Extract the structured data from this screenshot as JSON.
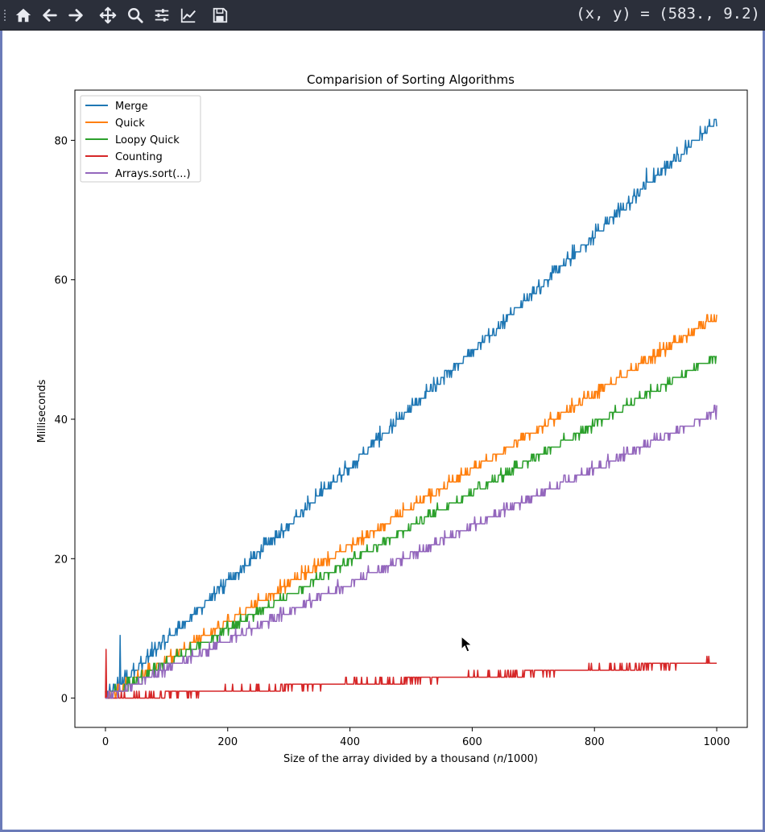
{
  "toolbar": {
    "buttons": [
      {
        "name": "home-button",
        "icon": "home-icon"
      },
      {
        "name": "back-button",
        "icon": "arrow-left-icon"
      },
      {
        "name": "forward-button",
        "icon": "arrow-right-icon"
      },
      {
        "name": "pan-button",
        "icon": "move-icon"
      },
      {
        "name": "zoom-button",
        "icon": "magnifier-icon"
      },
      {
        "name": "configure-subplots-button",
        "icon": "sliders-icon"
      },
      {
        "name": "edit-axis-button",
        "icon": "line-chart-icon"
      },
      {
        "name": "save-button",
        "icon": "floppy-disk-icon"
      }
    ],
    "coords_readout": "(x, y) = (583., 9.2)"
  },
  "colors": {
    "toolbar_bg": "#2b2f3a",
    "Merge": "#1f77b4",
    "Quick": "#ff7f0e",
    "Loopy Quick": "#2ca02c",
    "Counting": "#d62728",
    "Arrays.sort(...)": "#9467bd"
  },
  "chart_data": {
    "type": "line",
    "title": "Comparision of Sorting Algorithms",
    "xlabel_main": "Size of the array divided by a thousand (",
    "xlabel_var": "n",
    "xlabel_end": "/1000)",
    "ylabel": "Milliseconds",
    "xlim": [
      -50,
      1050
    ],
    "ylim": [
      -4.2,
      87.2
    ],
    "xticks": [
      0,
      200,
      400,
      600,
      800,
      1000
    ],
    "yticks": [
      0,
      20,
      40,
      60,
      80
    ],
    "grid": false,
    "legend_position": "upper-left",
    "series": [
      {
        "name": "Merge",
        "slope": 0.0829,
        "noise": 0.55,
        "spikes": [
          [
            24,
            9
          ],
          [
            885,
            76
          ],
          [
            663,
            56
          ]
        ]
      },
      {
        "name": "Quick",
        "slope": 0.0545,
        "noise": 0.45,
        "spikes": []
      },
      {
        "name": "Loopy Quick",
        "slope": 0.049,
        "noise": 0.4,
        "spikes": []
      },
      {
        "name": "Counting",
        "slope": 0.0051,
        "noise": 0.25,
        "spikes": [
          [
            1,
            7
          ]
        ]
      },
      {
        "name": "Arrays.sort(...)",
        "slope": 0.041,
        "noise": 0.4,
        "spikes": []
      }
    ]
  }
}
